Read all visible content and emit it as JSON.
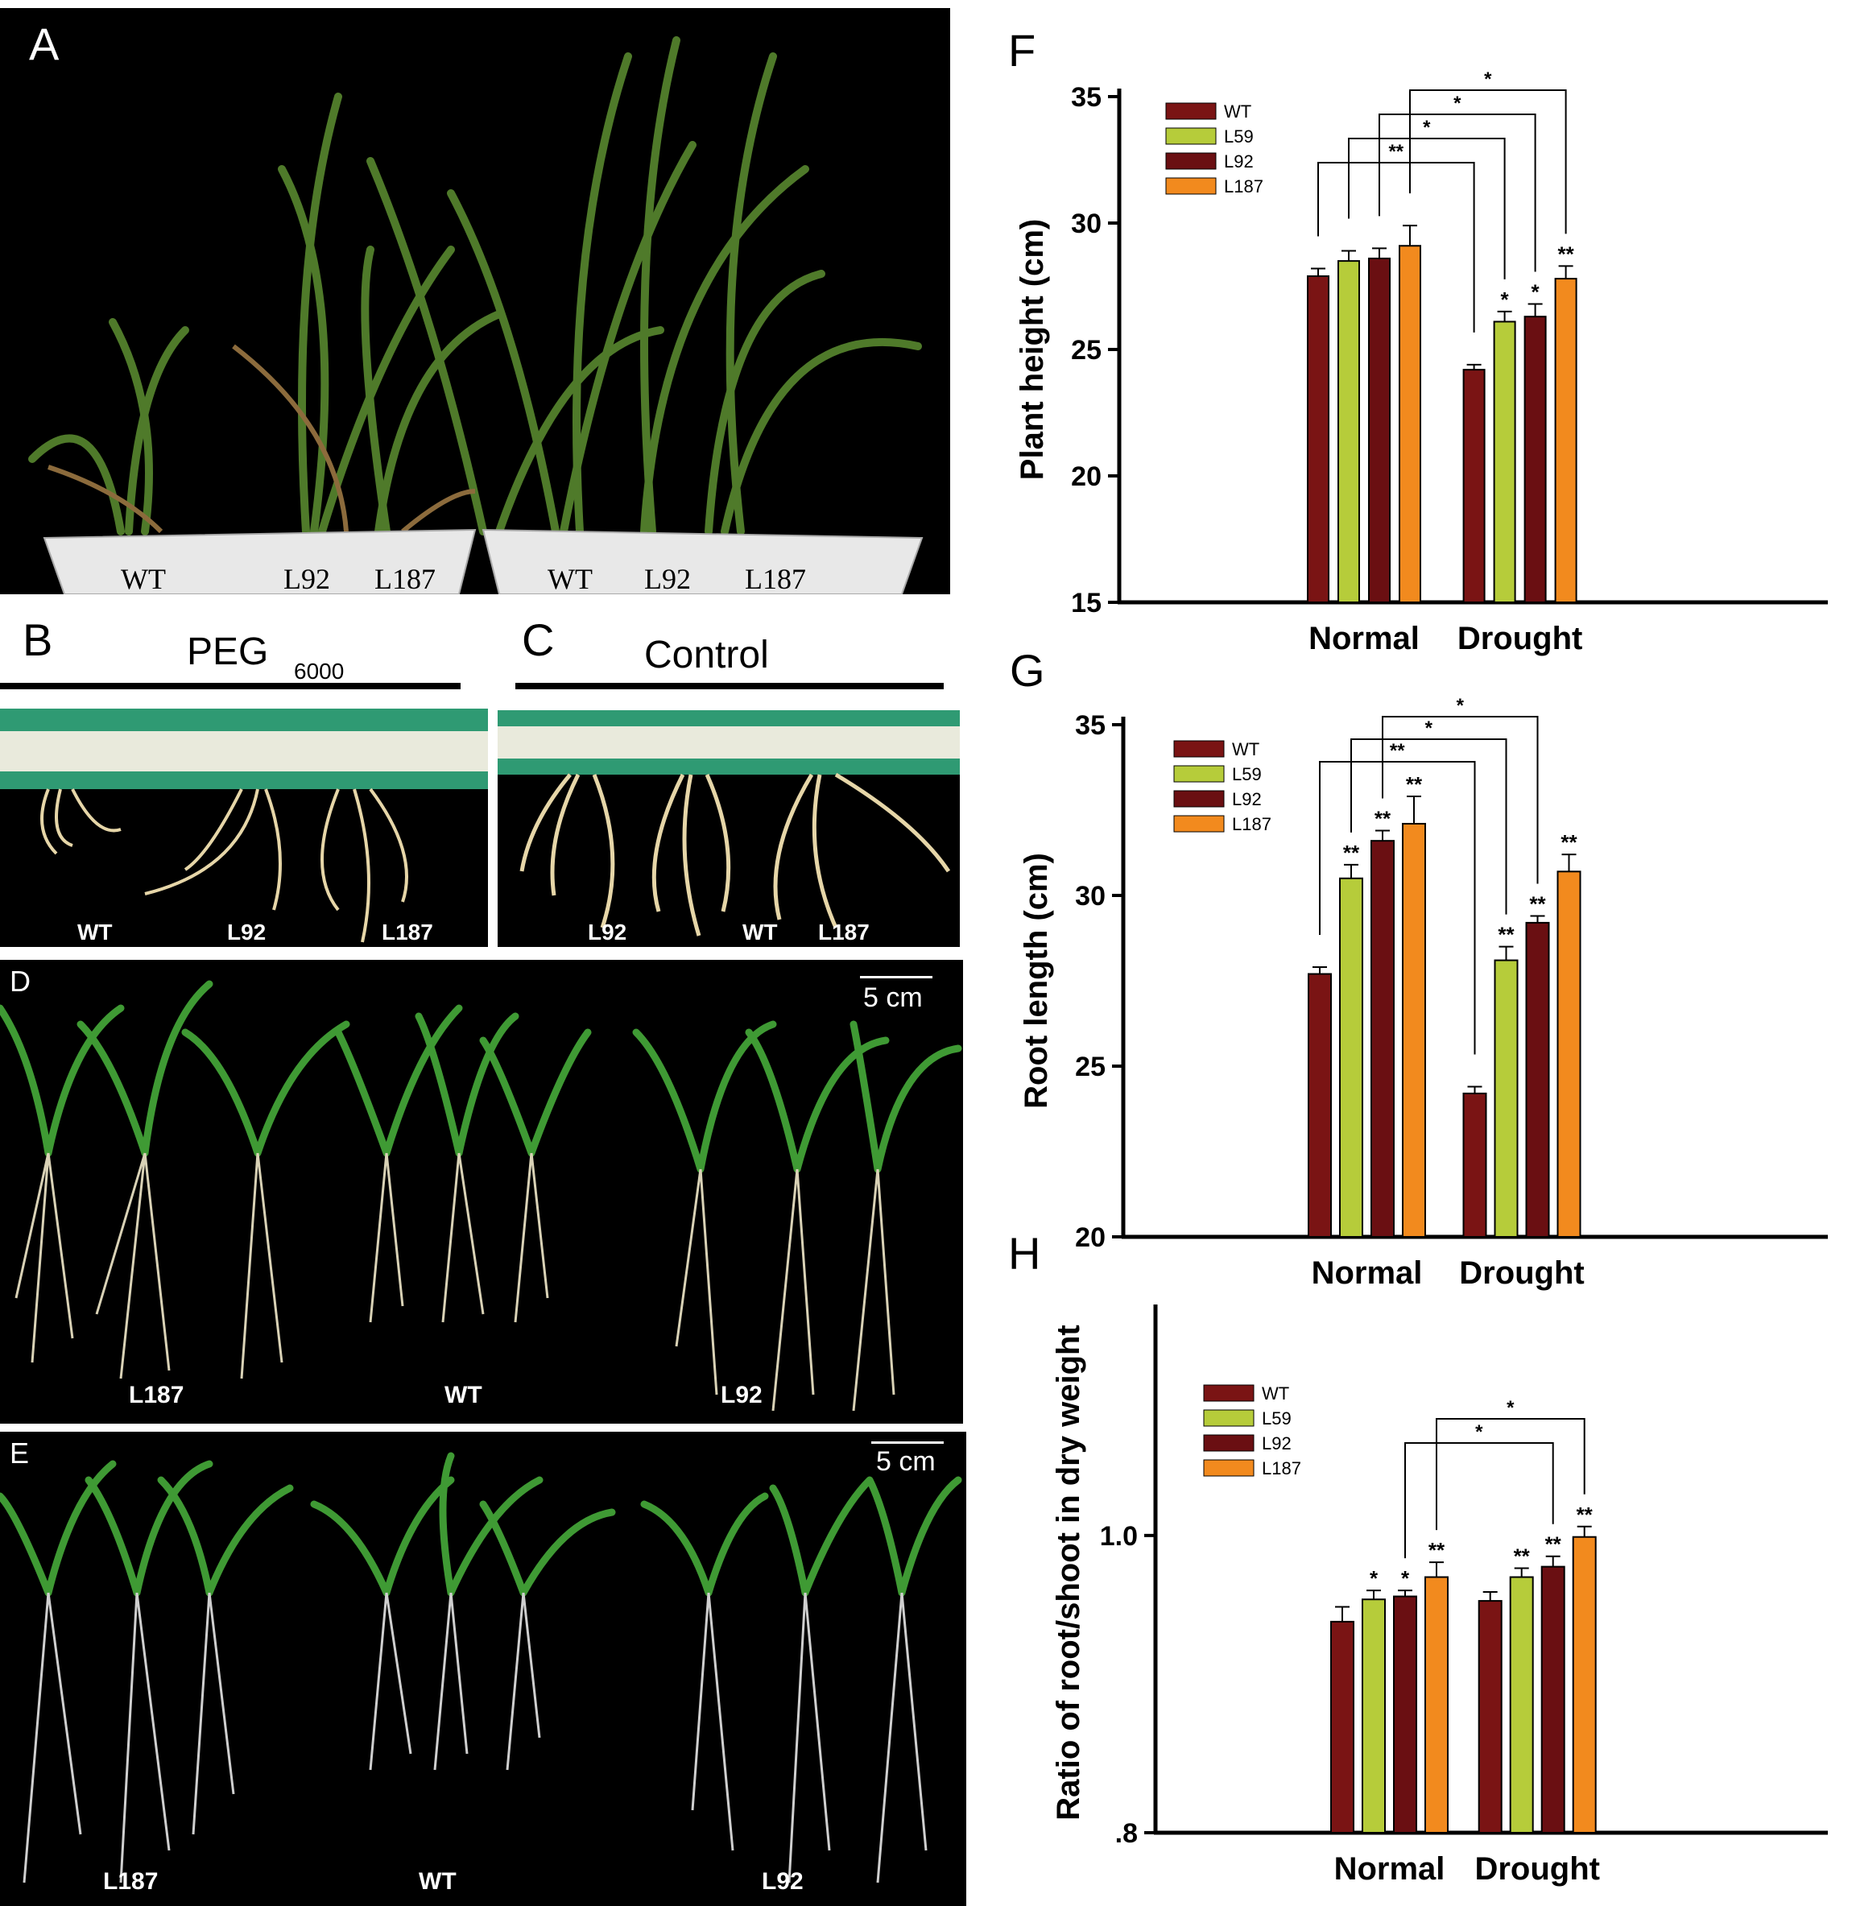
{
  "panel_letters": {
    "a": "A",
    "b": "B",
    "c": "C",
    "d": "D",
    "e": "E",
    "f": "F",
    "g": "G",
    "h": "H"
  },
  "panel_a": {
    "labels": [
      "WT",
      "L92",
      "L187",
      "WT",
      "L92",
      "L187"
    ]
  },
  "panel_b": {
    "title": "PEG",
    "title_sub": "6000",
    "labels": [
      "WT",
      "L92",
      "L187"
    ]
  },
  "panel_c": {
    "title": "Control",
    "labels": [
      "L92",
      "WT",
      "L187"
    ]
  },
  "panel_d": {
    "scale": "5 cm",
    "labels": [
      "L187",
      "WT",
      "L92"
    ]
  },
  "panel_e": {
    "scale": "5 cm",
    "labels": [
      "L187",
      "WT",
      "L92"
    ]
  },
  "colors": {
    "WT": "#7a1414",
    "L59": "#b6cc3a",
    "L92": "#6a0f12",
    "L187": "#f28a1e"
  },
  "chart_data": [
    {
      "id": "F",
      "type": "bar",
      "ylabel": "Plant height (cm)",
      "xlabel": "",
      "ylim": [
        15,
        35
      ],
      "yticks": [
        "15",
        "20",
        "25",
        "30",
        "35"
      ],
      "categories": [
        "Normal",
        "Drought"
      ],
      "legend": {
        "position": "top-left",
        "entries": [
          "WT",
          "L59",
          "L92",
          "L187"
        ]
      },
      "series": [
        {
          "name": "WT",
          "values": [
            27.9,
            24.2
          ],
          "errors": [
            0.3,
            0.2
          ],
          "sig": [
            "",
            ""
          ]
        },
        {
          "name": "L59",
          "values": [
            28.5,
            26.1
          ],
          "errors": [
            0.4,
            0.4
          ],
          "sig": [
            "",
            "*"
          ]
        },
        {
          "name": "L92",
          "values": [
            28.6,
            26.3
          ],
          "errors": [
            0.4,
            0.5
          ],
          "sig": [
            "",
            "*"
          ]
        },
        {
          "name": "L187",
          "values": [
            29.1,
            27.8
          ],
          "errors": [
            0.8,
            0.5
          ],
          "sig": [
            "",
            "**"
          ]
        }
      ],
      "brackets": [
        {
          "from": "WT",
          "to": "WT",
          "label": "**"
        },
        {
          "from": "L59",
          "to": "L59",
          "label": "*"
        },
        {
          "from": "L92",
          "to": "L92",
          "label": "*"
        },
        {
          "from": "L187",
          "to": "L187",
          "label": "*"
        }
      ]
    },
    {
      "id": "G",
      "type": "bar",
      "ylabel": "Root length (cm)",
      "xlabel": "",
      "ylim": [
        20,
        35
      ],
      "yticks": [
        "20",
        "25",
        "30",
        "35"
      ],
      "categories": [
        "Normal",
        "Drought"
      ],
      "legend": {
        "position": "top-left",
        "entries": [
          "WT",
          "L59",
          "L92",
          "L187"
        ]
      },
      "series": [
        {
          "name": "WT",
          "values": [
            27.7,
            24.2
          ],
          "errors": [
            0.2,
            0.2
          ],
          "sig": [
            "",
            ""
          ]
        },
        {
          "name": "L59",
          "values": [
            30.5,
            28.1
          ],
          "errors": [
            0.4,
            0.4
          ],
          "sig": [
            "**",
            "**"
          ]
        },
        {
          "name": "L92",
          "values": [
            31.6,
            29.2
          ],
          "errors": [
            0.3,
            0.2
          ],
          "sig": [
            "**",
            "**"
          ]
        },
        {
          "name": "L187",
          "values": [
            32.1,
            30.7
          ],
          "errors": [
            0.8,
            0.5
          ],
          "sig": [
            "**",
            "**"
          ]
        }
      ],
      "brackets": [
        {
          "from": "WT",
          "to": "WT",
          "label": "**"
        },
        {
          "from": "L59",
          "to": "L59",
          "label": "*"
        },
        {
          "from": "L92",
          "to": "L92",
          "label": "*"
        }
      ]
    },
    {
      "id": "H",
      "type": "bar",
      "ylabel": "Ratio of root/shoot in dry weight",
      "xlabel": "",
      "ylim": [
        0.8,
        1.15
      ],
      "yticks": [
        ".8",
        "1.0"
      ],
      "ytick_values": [
        0.8,
        1.0
      ],
      "categories": [
        "Normal",
        "Drought"
      ],
      "legend": {
        "position": "top-left",
        "entries": [
          "WT",
          "L59",
          "L92",
          "L187"
        ]
      },
      "series": [
        {
          "name": "WT",
          "values": [
            0.942,
            0.956
          ],
          "errors": [
            0.01,
            0.006
          ],
          "sig": [
            "",
            ""
          ]
        },
        {
          "name": "L59",
          "values": [
            0.957,
            0.972
          ],
          "errors": [
            0.006,
            0.006
          ],
          "sig": [
            "*",
            "**"
          ]
        },
        {
          "name": "L92",
          "values": [
            0.959,
            0.979
          ],
          "errors": [
            0.004,
            0.007
          ],
          "sig": [
            "*",
            "**"
          ]
        },
        {
          "name": "L187",
          "values": [
            0.972,
            0.999
          ],
          "errors": [
            0.01,
            0.007
          ],
          "sig": [
            "**",
            "**"
          ]
        }
      ],
      "brackets": [
        {
          "from": "L92",
          "to": "L92",
          "label": "*"
        },
        {
          "from": "L187",
          "to": "L187",
          "label": "*"
        }
      ]
    }
  ]
}
